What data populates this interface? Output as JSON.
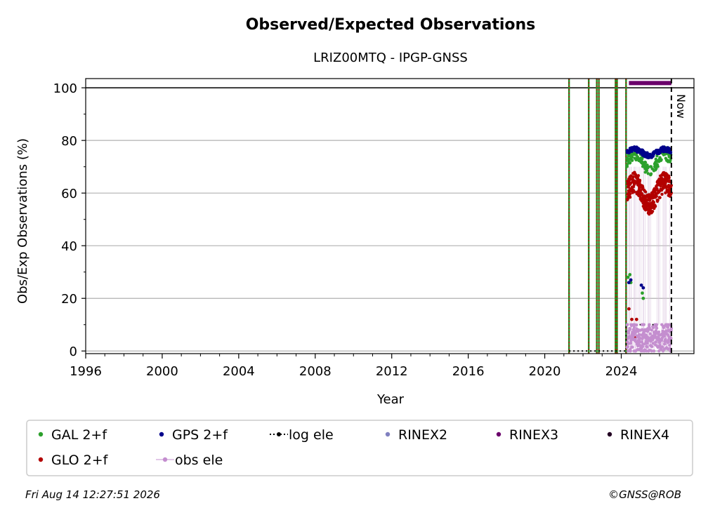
{
  "chart_data": {
    "type": "scatter",
    "title": "Observed/Expected Observations",
    "subtitle": "LRIZ00MTQ - IPGP-GNSS",
    "xlabel": "Year",
    "ylabel": "Obs/Exp Observations (%)",
    "xlim": [
      1996,
      2027.8
    ],
    "ylim": [
      -1,
      103.5
    ],
    "x_ticks": [
      1996,
      2000,
      2004,
      2008,
      2012,
      2016,
      2020,
      2024
    ],
    "y_ticks": [
      0,
      20,
      40,
      60,
      80,
      100
    ],
    "grid": "horizontal",
    "reference_line": 100,
    "now_line": {
      "x": 2026.62,
      "label": "Now"
    },
    "event_lines": [
      2021.27,
      2022.3,
      2022.72,
      2022.83,
      2023.7,
      2023.78,
      2024.25
    ],
    "log_ele": {
      "points": [
        [
          2021.27,
          0
        ],
        [
          2024.25,
          0
        ],
        [
          2024.25,
          10
        ],
        [
          2026.62,
          10
        ]
      ]
    },
    "rinex3_bar": {
      "x": [
        2024.4,
        2026.62
      ],
      "y": 101.8
    },
    "series": [
      {
        "name": "GAL 2+f",
        "color": "#2ca02c",
        "segments": [
          {
            "x": [
              2024.3,
              2026.62
            ],
            "base": 72,
            "amp": 3,
            "noise": 2.5,
            "n": 150
          }
        ],
        "points": [
          [
            2024.35,
            28
          ],
          [
            2024.45,
            29
          ],
          [
            2024.5,
            26
          ],
          [
            2025.1,
            22
          ],
          [
            2025.15,
            20
          ]
        ]
      },
      {
        "name": "GPS 2+f",
        "color": "#00008b",
        "segments": [
          {
            "x": [
              2024.3,
              2026.62
            ],
            "base": 75.5,
            "amp": 1.2,
            "noise": 1.0,
            "n": 170
          }
        ],
        "points": [
          [
            2024.4,
            26
          ],
          [
            2024.5,
            27
          ],
          [
            2025.05,
            25
          ],
          [
            2025.15,
            24
          ]
        ]
      },
      {
        "name": "GLO 2+f",
        "color": "#b30000",
        "segments": [
          {
            "x": [
              2024.3,
              2026.62
            ],
            "base": 60,
            "amp": 4,
            "noise": 4.0,
            "n": 320
          }
        ],
        "points": [
          [
            2024.4,
            16
          ],
          [
            2024.55,
            12
          ],
          [
            2024.8,
            12
          ],
          [
            2024.7,
            5
          ]
        ]
      },
      {
        "name": "obs ele",
        "color": "#c48ecf",
        "segments": [
          {
            "x": [
              2024.3,
              2026.62
            ],
            "base": 5,
            "amp": 3,
            "noise": 4.5,
            "n": 220
          }
        ],
        "points": []
      },
      {
        "name": "RINEX2",
        "color": "#8080c0",
        "segments": [],
        "points": []
      },
      {
        "name": "RINEX3",
        "color": "#6b006b",
        "segments": [],
        "points": []
      },
      {
        "name": "RINEX4",
        "color": "#220022",
        "segments": [],
        "points": []
      }
    ],
    "legend": {
      "placement": "bottom",
      "entries": [
        {
          "label": "GAL 2+f",
          "kind": "dot",
          "color": "#2ca02c"
        },
        {
          "label": "GPS 2+f",
          "kind": "dot",
          "color": "#00008b"
        },
        {
          "label": "log ele",
          "kind": "dotted-line",
          "color": "#000000"
        },
        {
          "label": "RINEX2",
          "kind": "dot",
          "color": "#8080c0"
        },
        {
          "label": "RINEX3",
          "kind": "dot",
          "color": "#6b006b"
        },
        {
          "label": "RINEX4",
          "kind": "dot",
          "color": "#220022"
        },
        {
          "label": "GLO 2+f",
          "kind": "dot",
          "color": "#b30000"
        },
        {
          "label": "obs ele",
          "kind": "line-dot",
          "color": "#c48ecf"
        }
      ]
    },
    "footer_left": "Fri Aug 14 12:27:51 2026",
    "footer_right": "©GNSS@ROB"
  }
}
